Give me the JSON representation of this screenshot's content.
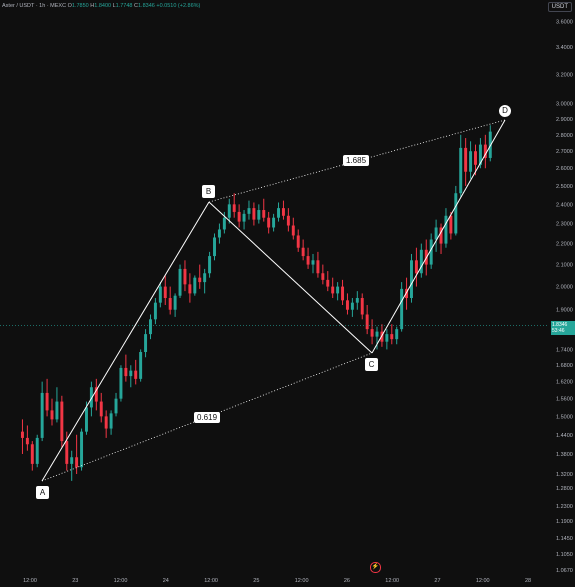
{
  "header": {
    "symbol_line": "Aster / USDT · 1h · MEXC",
    "o_label": "O",
    "o_value": "1.7850",
    "h_label": "H",
    "h_value": "1.8400",
    "l_label": "L",
    "l_value": "1.7748",
    "c_label": "C",
    "c_value": "1.8346",
    "change": "+0.0510 (+2.86%)"
  },
  "currency_badge": "USDT",
  "price_tag": {
    "price": "1.8346",
    "countdown": "53:46"
  },
  "pattern": {
    "points": [
      {
        "label": "A",
        "date": "22 12:00",
        "price": 1.26
      },
      {
        "label": "B",
        "date": "24 12:00",
        "price": 2.465
      },
      {
        "label": "C",
        "date": "26 12:00",
        "price": 1.72
      },
      {
        "label": "D",
        "date": "27 12:00",
        "price": 2.92
      }
    ],
    "ratios": [
      "0.619",
      "1.685"
    ]
  },
  "icons": {
    "flash": "flash-icon"
  },
  "colors": {
    "up": "#26a69a",
    "down": "#f23645",
    "bg": "#0f0f0f",
    "pattern": "#ffffff"
  },
  "chart_data": {
    "type": "candlestick",
    "title": "Aster / USDT · 1h · MEXC",
    "y_scale": "log",
    "ylim": [
      1.067,
      3.66
    ],
    "y_ticks": [
      "3.6000",
      "3.4000",
      "3.2000",
      "3.0000",
      "2.9000",
      "2.8000",
      "2.7000",
      "2.6000",
      "2.5000",
      "2.4000",
      "2.3000",
      "2.2000",
      "2.1000",
      "2.0000",
      "1.9000",
      "1.8346",
      "1.7400",
      "1.6800",
      "1.6200",
      "1.5600",
      "1.5000",
      "1.4400",
      "1.3800",
      "1.3200",
      "1.2800",
      "1.2300",
      "1.1900",
      "1.1450",
      "1.1050",
      "1.0670"
    ],
    "x_ticks": [
      "12:00",
      "23",
      "12:00",
      "24",
      "12:00",
      "25",
      "12:00",
      "26",
      "12:00",
      "27",
      "12:00",
      "28"
    ],
    "x_range": [
      "22 10:00",
      "28 00:00"
    ],
    "last_price": 1.8346,
    "ohlc_note": "Hourly candles approximated from the picture",
    "candles": [
      [
        1.45,
        1.49,
        1.38,
        1.43
      ],
      [
        1.43,
        1.47,
        1.39,
        1.41
      ],
      [
        1.41,
        1.42,
        1.33,
        1.35
      ],
      [
        1.35,
        1.44,
        1.34,
        1.43
      ],
      [
        1.43,
        1.62,
        1.42,
        1.58
      ],
      [
        1.58,
        1.63,
        1.5,
        1.52
      ],
      [
        1.52,
        1.56,
        1.47,
        1.49
      ],
      [
        1.49,
        1.6,
        1.48,
        1.55
      ],
      [
        1.55,
        1.57,
        1.4,
        1.42
      ],
      [
        1.42,
        1.45,
        1.33,
        1.35
      ],
      [
        1.35,
        1.39,
        1.3,
        1.37
      ],
      [
        1.37,
        1.44,
        1.32,
        1.34
      ],
      [
        1.34,
        1.46,
        1.33,
        1.45
      ],
      [
        1.45,
        1.55,
        1.44,
        1.53
      ],
      [
        1.53,
        1.62,
        1.5,
        1.6
      ],
      [
        1.6,
        1.63,
        1.52,
        1.55
      ],
      [
        1.55,
        1.58,
        1.48,
        1.5
      ],
      [
        1.5,
        1.52,
        1.43,
        1.46
      ],
      [
        1.46,
        1.52,
        1.44,
        1.51
      ],
      [
        1.51,
        1.58,
        1.5,
        1.56
      ],
      [
        1.56,
        1.68,
        1.55,
        1.67
      ],
      [
        1.67,
        1.72,
        1.62,
        1.64
      ],
      [
        1.64,
        1.68,
        1.6,
        1.66
      ],
      [
        1.66,
        1.7,
        1.61,
        1.63
      ],
      [
        1.63,
        1.74,
        1.62,
        1.73
      ],
      [
        1.73,
        1.82,
        1.71,
        1.8
      ],
      [
        1.8,
        1.88,
        1.78,
        1.86
      ],
      [
        1.86,
        1.95,
        1.84,
        1.93
      ],
      [
        1.93,
        2.02,
        1.91,
        2.0
      ],
      [
        2.0,
        2.05,
        1.92,
        1.95
      ],
      [
        1.95,
        2.0,
        1.88,
        1.9
      ],
      [
        1.9,
        1.97,
        1.87,
        1.96
      ],
      [
        1.96,
        2.1,
        1.95,
        2.08
      ],
      [
        2.08,
        2.12,
        1.98,
        2.01
      ],
      [
        2.01,
        2.06,
        1.93,
        1.97
      ],
      [
        1.97,
        2.05,
        1.96,
        2.04
      ],
      [
        2.04,
        2.1,
        1.99,
        2.02
      ],
      [
        2.02,
        2.08,
        1.97,
        2.06
      ],
      [
        2.06,
        2.16,
        2.04,
        2.14
      ],
      [
        2.14,
        2.25,
        2.12,
        2.23
      ],
      [
        2.23,
        2.3,
        2.2,
        2.27
      ],
      [
        2.27,
        2.36,
        2.25,
        2.33
      ],
      [
        2.33,
        2.43,
        2.3,
        2.4
      ],
      [
        2.4,
        2.46,
        2.33,
        2.36
      ],
      [
        2.36,
        2.4,
        2.28,
        2.31
      ],
      [
        2.31,
        2.37,
        2.27,
        2.35
      ],
      [
        2.35,
        2.42,
        2.32,
        2.38
      ],
      [
        2.38,
        2.41,
        2.29,
        2.32
      ],
      [
        2.32,
        2.4,
        2.3,
        2.37
      ],
      [
        2.37,
        2.43,
        2.31,
        2.33
      ],
      [
        2.33,
        2.36,
        2.25,
        2.28
      ],
      [
        2.28,
        2.35,
        2.26,
        2.33
      ],
      [
        2.33,
        2.41,
        2.31,
        2.38
      ],
      [
        2.38,
        2.42,
        2.32,
        2.34
      ],
      [
        2.34,
        2.38,
        2.26,
        2.29
      ],
      [
        2.29,
        2.33,
        2.22,
        2.24
      ],
      [
        2.24,
        2.27,
        2.16,
        2.18
      ],
      [
        2.18,
        2.22,
        2.12,
        2.14
      ],
      [
        2.14,
        2.18,
        2.08,
        2.1
      ],
      [
        2.1,
        2.15,
        2.06,
        2.12
      ],
      [
        2.12,
        2.16,
        2.04,
        2.06
      ],
      [
        2.06,
        2.1,
        2.01,
        2.03
      ],
      [
        2.03,
        2.07,
        1.98,
        2.0
      ],
      [
        2.0,
        2.04,
        1.95,
        1.97
      ],
      [
        1.97,
        2.02,
        1.94,
        2.0
      ],
      [
        2.0,
        2.03,
        1.92,
        1.94
      ],
      [
        1.94,
        1.97,
        1.88,
        1.9
      ],
      [
        1.9,
        1.95,
        1.87,
        1.93
      ],
      [
        1.93,
        1.98,
        1.9,
        1.95
      ],
      [
        1.95,
        1.97,
        1.86,
        1.88
      ],
      [
        1.88,
        1.92,
        1.8,
        1.82
      ],
      [
        1.82,
        1.86,
        1.76,
        1.79
      ],
      [
        1.79,
        1.83,
        1.74,
        1.81
      ],
      [
        1.81,
        1.84,
        1.75,
        1.77
      ],
      [
        1.77,
        1.82,
        1.74,
        1.8
      ],
      [
        1.8,
        1.84,
        1.76,
        1.78
      ],
      [
        1.78,
        1.83,
        1.76,
        1.82
      ],
      [
        1.82,
        2.02,
        1.81,
        1.99
      ],
      [
        1.99,
        2.04,
        1.9,
        1.95
      ],
      [
        1.95,
        2.15,
        1.93,
        2.12
      ],
      [
        2.12,
        2.18,
        2.0,
        2.06
      ],
      [
        2.06,
        2.2,
        2.04,
        2.17
      ],
      [
        2.17,
        2.22,
        2.05,
        2.1
      ],
      [
        2.1,
        2.25,
        2.08,
        2.22
      ],
      [
        2.22,
        2.32,
        2.16,
        2.28
      ],
      [
        2.28,
        2.3,
        2.15,
        2.2
      ],
      [
        2.2,
        2.38,
        2.18,
        2.34
      ],
      [
        2.34,
        2.36,
        2.22,
        2.25
      ],
      [
        2.25,
        2.5,
        2.24,
        2.46
      ],
      [
        2.46,
        2.8,
        2.44,
        2.72
      ],
      [
        2.72,
        2.78,
        2.5,
        2.58
      ],
      [
        2.58,
        2.76,
        2.54,
        2.7
      ],
      [
        2.7,
        2.74,
        2.56,
        2.62
      ],
      [
        2.62,
        2.78,
        2.6,
        2.74
      ],
      [
        2.74,
        2.8,
        2.6,
        2.66
      ],
      [
        2.66,
        2.86,
        2.64,
        2.82
      ]
    ]
  }
}
